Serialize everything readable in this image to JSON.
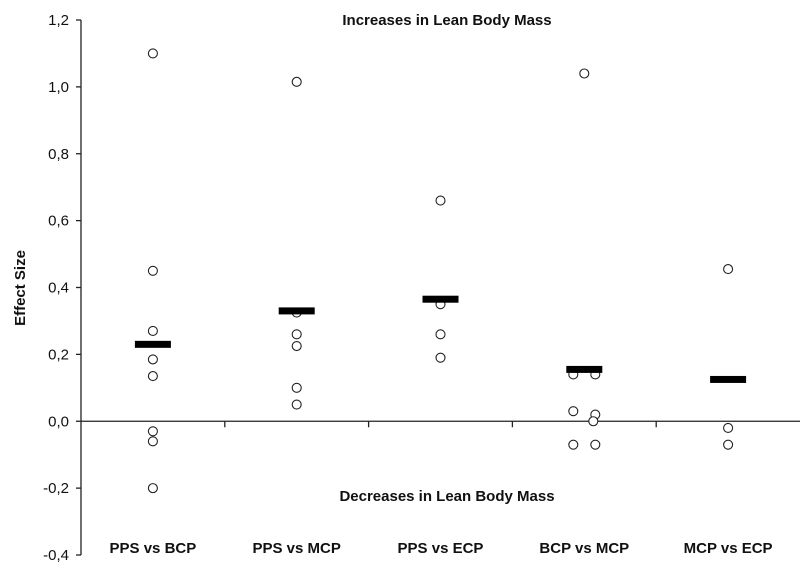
{
  "chart_data": {
    "type": "scatter",
    "ylabel": "Effect Size",
    "ylim": [
      -0.4,
      1.2
    ],
    "yticks": [
      -0.4,
      -0.2,
      0.0,
      0.2,
      0.4,
      0.6,
      0.8,
      1.0,
      1.2
    ],
    "ytick_labels": [
      "-0,4",
      "-0,2",
      "0,0",
      "0,2",
      "0,4",
      "0,6",
      "0,8",
      "1,0",
      "1,2"
    ],
    "grid": false,
    "annotations": {
      "top": "Increases in Lean Body Mass",
      "bottom": "Decreases in Lean Body Mass"
    },
    "categories": [
      "PPS vs BCP",
      "PPS vs MCP",
      "PPS vs ECP",
      "BCP vs MCP",
      "MCP vs ECP"
    ],
    "points": [
      [
        1.1,
        0.45,
        0.27,
        0.185,
        0.135,
        -0.03,
        -0.06,
        -0.2
      ],
      [
        1.015,
        0.325,
        0.26,
        0.225,
        0.1,
        0.05
      ],
      [
        0.66,
        0.35,
        0.26,
        0.19
      ],
      [
        1.04,
        0.14,
        0.14,
        0.03,
        0.02,
        0.0,
        -0.07,
        -0.07
      ],
      [
        0.455,
        -0.02,
        -0.07
      ]
    ],
    "means": [
      0.23,
      0.33,
      0.365,
      0.155,
      0.125
    ]
  }
}
